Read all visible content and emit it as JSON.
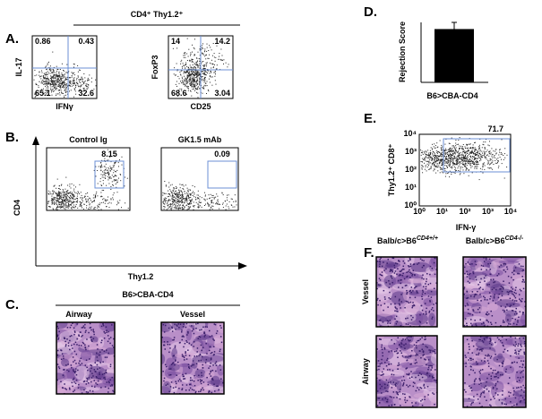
{
  "panels": {
    "A": {
      "label": "A.",
      "header": "CD4⁺ Thy1.2⁺",
      "plots": [
        {
          "ylabel": "IL-17",
          "xlabel": "IFNγ",
          "quadrants": [
            0.86,
            0.43,
            65.1,
            32.6
          ]
        },
        {
          "ylabel": "FoxP3",
          "xlabel": "CD25",
          "quadrants": [
            14,
            14.2,
            68.6,
            3.04
          ]
        }
      ]
    },
    "B": {
      "label": "B.",
      "ylabel": "CD4",
      "xlabel": "Thy1.2",
      "plots": [
        {
          "title": "Control Ig",
          "gate": 8.15
        },
        {
          "title": "GK1.5 mAb",
          "gate": 0.09
        }
      ]
    },
    "C": {
      "label": "C.",
      "header": "B6>CBA-CD4",
      "images": [
        "Airway",
        "Vessel"
      ]
    },
    "D": {
      "label": "D."
    },
    "E": {
      "label": "E.",
      "ylabel": "Thy1.2⁺ CD8⁺",
      "xlabel": "IFN-γ",
      "gate": 71.7,
      "ticks": [
        "10⁰",
        "10¹",
        "10²",
        "10³",
        "10⁴"
      ]
    },
    "F": {
      "label": "F.",
      "columns": [
        {
          "base": "Balb/c>B6",
          "sup": "CD4+/+"
        },
        {
          "base": "Balb/c>B6",
          "sup": "CD4-/-"
        }
      ],
      "rows": [
        "Vessel",
        "Airway"
      ]
    }
  },
  "chart_data": {
    "type": "bar",
    "ylabel": "Rejection Score",
    "categories": [
      "B6>CBA-CD4"
    ],
    "values": [
      3.2
    ],
    "errors": [
      0.4
    ],
    "ylim": [
      0,
      3.6
    ],
    "color": "#000000"
  }
}
